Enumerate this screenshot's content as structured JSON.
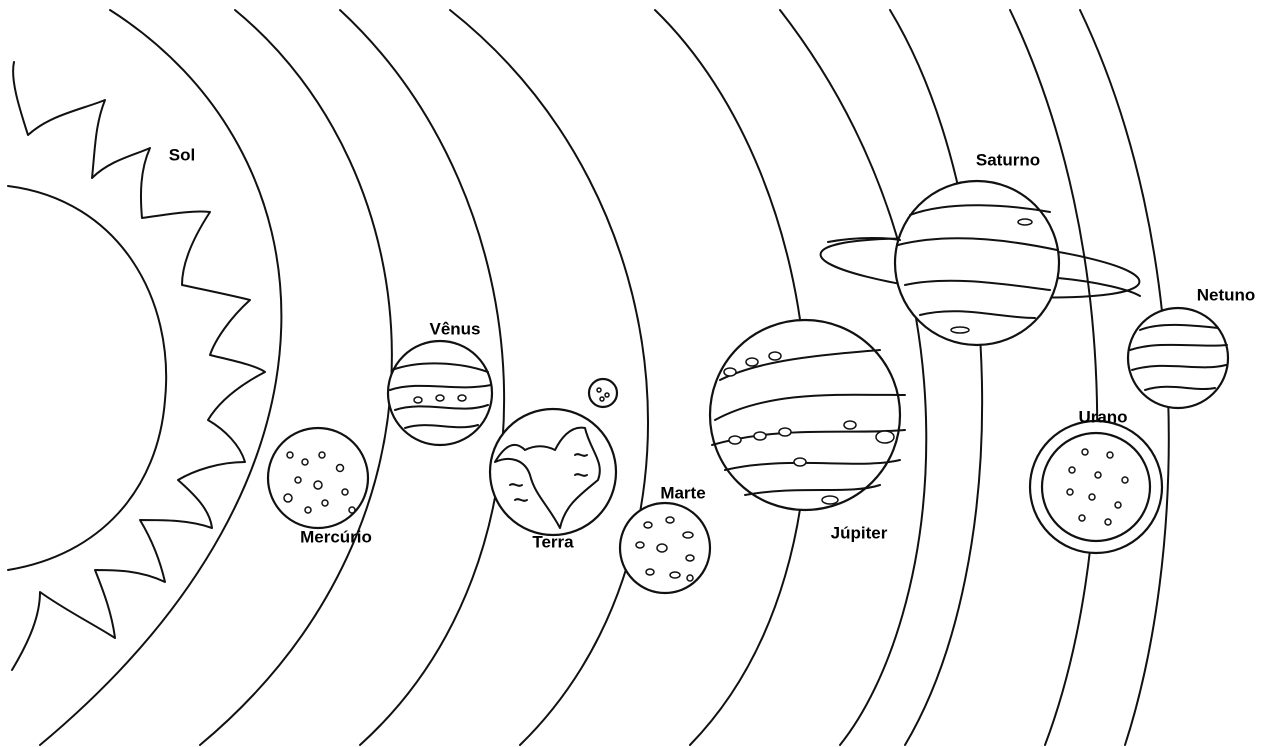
{
  "labels": {
    "sun": "Sol",
    "mercury": "Mercúrio",
    "venus": "Vênus",
    "earth": "Terra",
    "mars": "Marte",
    "jupiter": "Júpiter",
    "saturn": "Saturno",
    "uranus": "Urano",
    "neptune": "Netuno"
  }
}
